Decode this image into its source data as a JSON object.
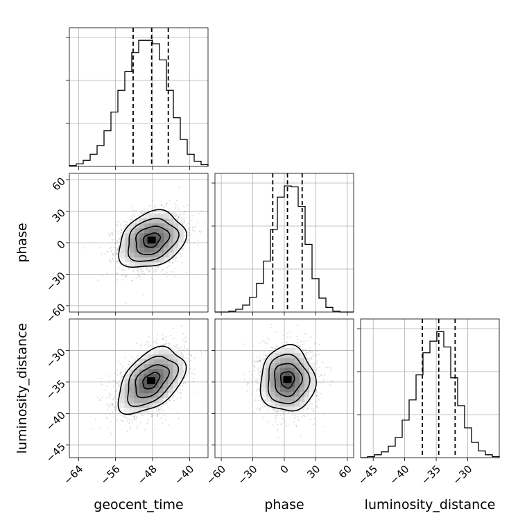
{
  "chart_data": {
    "type": "corner",
    "parameters": [
      "geocent_time",
      "phase",
      "luminosity_distance"
    ],
    "labels": {
      "geocent_time": "geocent_time",
      "phase": "phase",
      "luminosity_distance": "luminosity_distance"
    },
    "ranges": {
      "geocent_time": [
        -66,
        -36
      ],
      "phase": [
        -66,
        66
      ],
      "luminosity_distance": [
        -47,
        -25
      ]
    },
    "ticks": {
      "geocent_time": [
        -64,
        -56,
        -48,
        -40
      ],
      "phase": [
        -60,
        -30,
        0,
        30,
        60
      ],
      "luminosity_distance": [
        -45,
        -40,
        -35,
        -30
      ]
    },
    "tick_labels": {
      "geocent_time": [
        "−64",
        "−56",
        "−48",
        "−40"
      ],
      "phase": [
        "−60",
        "−30",
        "0",
        "30",
        "60"
      ],
      "luminosity_distance": [
        "−45",
        "−40",
        "−35",
        "−30"
      ]
    },
    "quantiles": {
      "geocent_time": [
        -52.2,
        -48.2,
        -44.6
      ],
      "phase": [
        -11,
        3,
        17
      ],
      "luminosity_distance": [
        -37.2,
        -34.6,
        -32.0
      ]
    },
    "histograms": {
      "geocent_time": {
        "edges": [
          -66,
          -64.5,
          -63,
          -61.5,
          -60,
          -58.5,
          -57,
          -55.5,
          -54,
          -52.5,
          -51,
          -49.5,
          -48,
          -46.5,
          -45,
          -43.5,
          -42,
          -40.5,
          -39,
          -37.5,
          -36
        ],
        "counts": [
          2,
          6,
          14,
          28,
          48,
          82,
          125,
          175,
          218,
          262,
          290,
          290,
          282,
          245,
          175,
          112,
          62,
          28,
          12,
          4
        ]
      },
      "phase": {
        "edges": [
          -66,
          -59.4,
          -52.8,
          -46.2,
          -39.6,
          -33,
          -26.4,
          -19.8,
          -13.2,
          -6.6,
          0,
          6.6,
          13.2,
          19.8,
          26.4,
          33,
          39.6,
          46.2,
          52.8,
          59.4,
          66
        ],
        "counts": [
          0,
          0,
          2,
          6,
          15,
          32,
          62,
          110,
          178,
          248,
          272,
          270,
          228,
          146,
          72,
          30,
          10,
          2,
          0,
          0
        ]
      },
      "luminosity_distance": {
        "edges": [
          -47,
          -45.9,
          -44.8,
          -43.7,
          -42.6,
          -41.5,
          -40.4,
          -39.3,
          -38.2,
          -37.1,
          -36,
          -34.9,
          -33.8,
          -32.7,
          -31.6,
          -30.5,
          -29.4,
          -28.3,
          -27.2,
          -26.1,
          -25
        ],
        "counts": [
          0,
          2,
          6,
          12,
          24,
          42,
          78,
          120,
          172,
          218,
          242,
          262,
          230,
          166,
          108,
          62,
          32,
          14,
          6,
          2
        ]
      }
    },
    "joint": [
      {
        "x": "geocent_time",
        "y": "phase",
        "mean": [
          -48.2,
          2.5
        ],
        "sigma": [
          3.6,
          13.5
        ],
        "correlation": 0.25,
        "contour_levels_sigma": [
          0.5,
          1.0,
          1.5,
          2.0
        ]
      },
      {
        "x": "geocent_time",
        "y": "luminosity_distance",
        "mean": [
          -48.3,
          -34.8
        ],
        "sigma": [
          3.6,
          2.6
        ],
        "correlation": 0.45,
        "contour_levels_sigma": [
          0.5,
          1.0,
          1.5,
          2.0
        ]
      },
      {
        "x": "phase",
        "y": "luminosity_distance",
        "mean": [
          3,
          -34.6
        ],
        "sigma": [
          13,
          2.6
        ],
        "correlation": 0.0,
        "contour_levels_sigma": [
          0.5,
          1.0,
          1.5,
          2.0
        ]
      }
    ],
    "grid": true
  }
}
